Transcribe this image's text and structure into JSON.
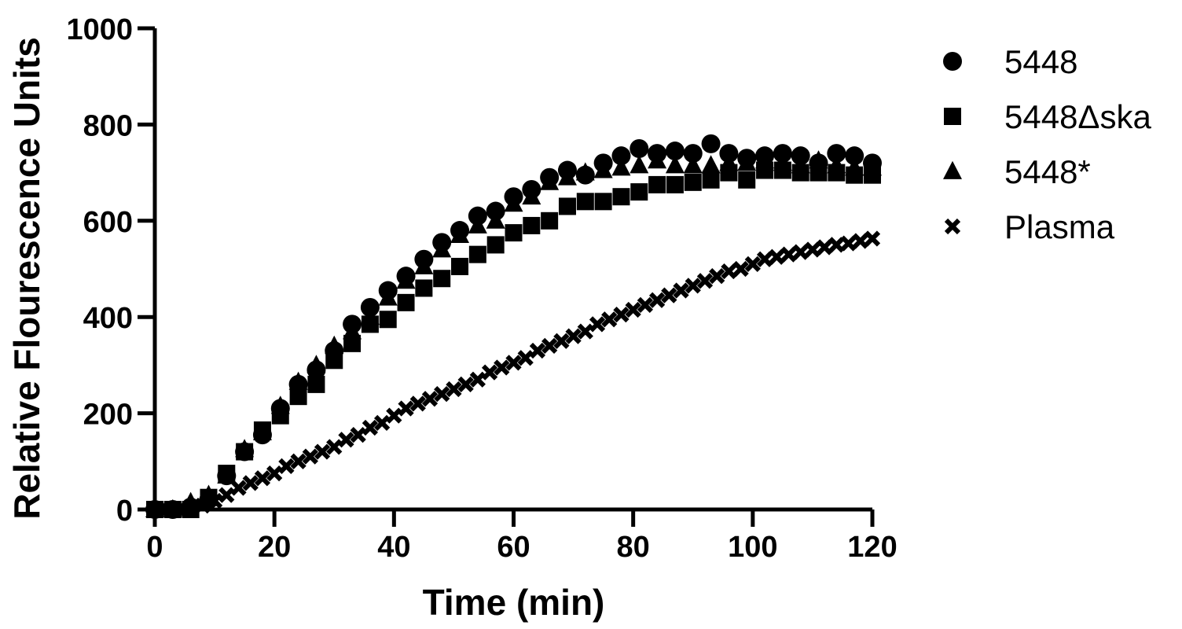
{
  "chart_data": {
    "type": "scatter",
    "xlabel": "Time (min)",
    "ylabel": "Relative Flourescence Units",
    "xlim": [
      0,
      120
    ],
    "ylim": [
      0,
      1000
    ],
    "xticks": [
      "0",
      "20",
      "40",
      "60",
      "80",
      "100",
      "120"
    ],
    "yticks": [
      "0",
      "200",
      "400",
      "600",
      "800",
      "1000"
    ],
    "grid": false,
    "legend_position": "top-right",
    "series": [
      {
        "name": "5448",
        "marker": "circle",
        "color": "#000000",
        "x": [
          0,
          3,
          6,
          9,
          12,
          15,
          18,
          21,
          24,
          27,
          30,
          33,
          36,
          39,
          42,
          45,
          48,
          51,
          54,
          57,
          60,
          63,
          66,
          69,
          72,
          75,
          78,
          81,
          84,
          87,
          90,
          93,
          96,
          99,
          102,
          105,
          108,
          111,
          114,
          117,
          120
        ],
        "y": [
          0,
          0,
          5,
          20,
          70,
          120,
          155,
          210,
          260,
          290,
          330,
          385,
          420,
          455,
          485,
          520,
          555,
          580,
          610,
          620,
          650,
          665,
          690,
          705,
          695,
          720,
          735,
          750,
          740,
          745,
          740,
          760,
          740,
          730,
          735,
          740,
          735,
          720,
          740,
          735,
          720
        ]
      },
      {
        "name": "5448Δska",
        "marker": "square",
        "color": "#000000",
        "x": [
          0,
          3,
          6,
          9,
          12,
          15,
          18,
          21,
          24,
          27,
          30,
          33,
          36,
          39,
          42,
          45,
          48,
          51,
          54,
          57,
          60,
          63,
          66,
          69,
          72,
          75,
          78,
          81,
          84,
          87,
          90,
          93,
          96,
          99,
          102,
          105,
          108,
          111,
          114,
          117,
          120
        ],
        "y": [
          0,
          0,
          0,
          25,
          75,
          120,
          165,
          195,
          235,
          260,
          310,
          345,
          385,
          395,
          430,
          460,
          480,
          505,
          530,
          550,
          575,
          590,
          600,
          630,
          640,
          640,
          650,
          660,
          675,
          675,
          680,
          685,
          700,
          685,
          705,
          705,
          700,
          700,
          700,
          695,
          695
        ]
      },
      {
        "name": "5448*",
        "marker": "triangle",
        "color": "#000000",
        "x": [
          0,
          3,
          6,
          9,
          12,
          15,
          18,
          21,
          24,
          27,
          30,
          33,
          36,
          39,
          42,
          45,
          48,
          51,
          54,
          57,
          60,
          63,
          66,
          69,
          72,
          75,
          78,
          81,
          84,
          87,
          90,
          93,
          96,
          99,
          102,
          105,
          108,
          111,
          114,
          117,
          120
        ],
        "y": [
          0,
          0,
          15,
          30,
          70,
          125,
          160,
          215,
          265,
          300,
          340,
          370,
          400,
          440,
          475,
          505,
          540,
          570,
          590,
          600,
          635,
          650,
          680,
          690,
          700,
          705,
          710,
          715,
          725,
          715,
          715,
          715,
          720,
          720,
          725,
          720,
          715,
          725,
          715,
          710,
          710
        ]
      },
      {
        "name": "Plasma",
        "marker": "x",
        "color": "#000000",
        "x": [
          0,
          2,
          4,
          6,
          8,
          10,
          12,
          14,
          16,
          18,
          20,
          22,
          24,
          26,
          28,
          30,
          32,
          34,
          36,
          38,
          40,
          42,
          44,
          46,
          48,
          50,
          52,
          54,
          56,
          58,
          60,
          62,
          64,
          66,
          68,
          70,
          72,
          74,
          76,
          78,
          80,
          82,
          84,
          86,
          88,
          90,
          92,
          94,
          96,
          98,
          100,
          102,
          104,
          106,
          108,
          110,
          112,
          114,
          116,
          118,
          120
        ],
        "y": [
          0,
          0,
          0,
          0,
          8,
          18,
          30,
          45,
          55,
          65,
          75,
          90,
          100,
          110,
          120,
          130,
          145,
          155,
          170,
          180,
          195,
          210,
          220,
          230,
          240,
          250,
          260,
          270,
          285,
          295,
          305,
          315,
          330,
          340,
          350,
          360,
          370,
          385,
          395,
          405,
          415,
          425,
          435,
          445,
          455,
          465,
          475,
          485,
          495,
          500,
          510,
          520,
          525,
          530,
          535,
          540,
          545,
          550,
          553,
          558,
          563
        ]
      }
    ]
  }
}
